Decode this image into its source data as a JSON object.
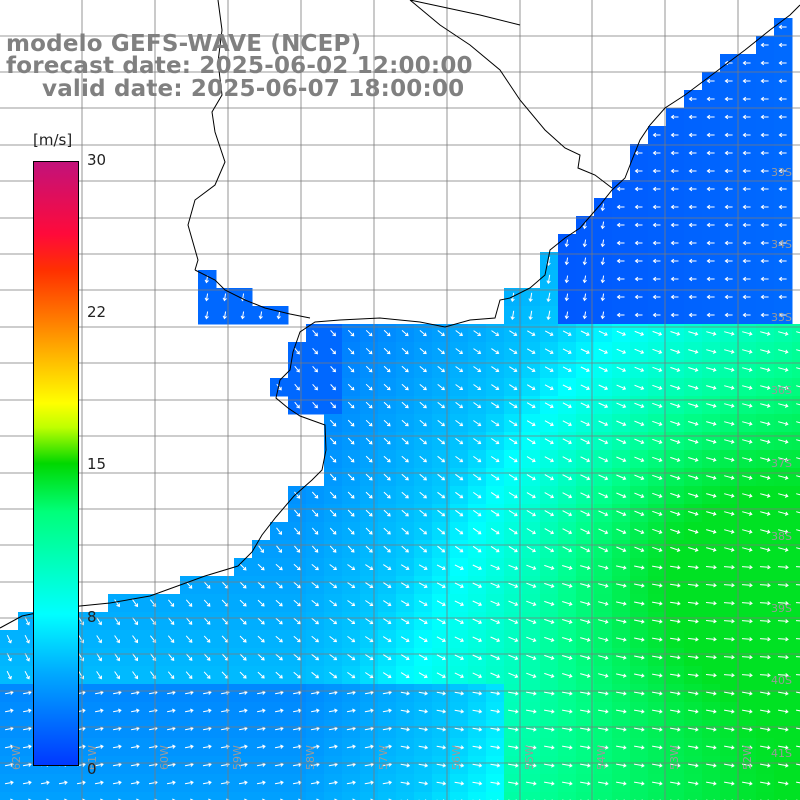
{
  "header": {
    "line1": "modelo GEFS-WAVE (NCEP)",
    "line2": "forecast date: 2025-06-02 12:00:00",
    "line3": "valid date: 2025-06-07 18:00:00"
  },
  "colorbar": {
    "unit": "[m/s]",
    "ticks": [
      "30",
      "22",
      "15",
      "8",
      "0"
    ],
    "tick_values": [
      30,
      22,
      15,
      8,
      0
    ],
    "colors": [
      "#c2127a",
      "#ff0a3a",
      "#ff7a00",
      "#ffff00",
      "#00d800",
      "#00ffff",
      "#0038ff"
    ]
  },
  "map": {
    "lat_labels": [
      "33S",
      "34S",
      "35S",
      "36S",
      "37S",
      "38S",
      "39S",
      "40S",
      "41S"
    ],
    "lon_labels": [
      "62W",
      "61W",
      "60W",
      "59W",
      "58W",
      "57W",
      "56W",
      "55W",
      "54W",
      "53W",
      "52W"
    ],
    "field": "wind speed",
    "arrow_color": "#ffffff",
    "land_color": "#ffffff",
    "coast_color": "#000000",
    "grid_color": "#7a7a7a"
  }
}
